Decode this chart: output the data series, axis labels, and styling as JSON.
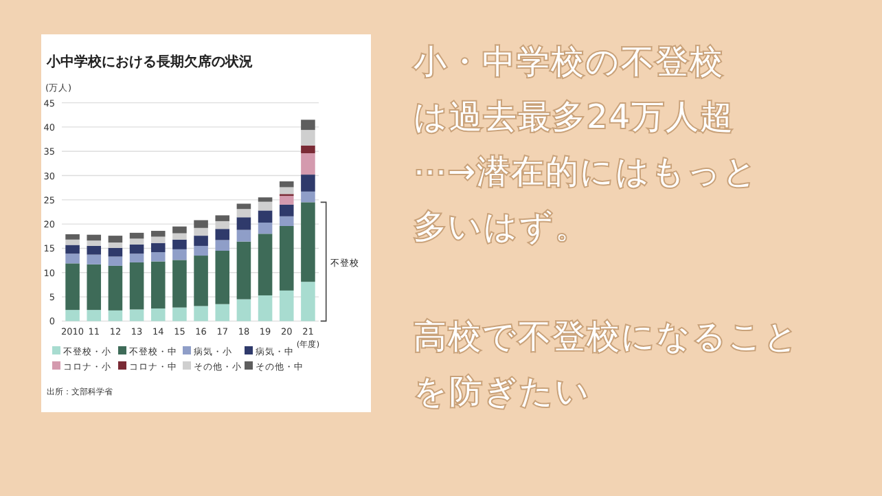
{
  "chart_data": {
    "type": "bar",
    "stacked": true,
    "title": "小中学校における長期欠席の状況",
    "ylabel": "(万人)",
    "xlabel": "(年度)",
    "categories": [
      "2010",
      "11",
      "12",
      "13",
      "14",
      "15",
      "16",
      "17",
      "18",
      "19",
      "20",
      "21"
    ],
    "series": [
      {
        "name": "不登校・小",
        "color": "#a8dcd0",
        "values": [
          2.3,
          2.3,
          2.2,
          2.4,
          2.6,
          2.8,
          3.1,
          3.5,
          4.5,
          5.3,
          6.3,
          8.1
        ]
      },
      {
        "name": "不登校・中",
        "color": "#3e6b58",
        "values": [
          9.6,
          9.4,
          9.2,
          9.7,
          9.7,
          9.8,
          10.4,
          11.0,
          11.9,
          12.7,
          13.3,
          16.4
        ]
      },
      {
        "name": "病気・小",
        "color": "#8f9ec8",
        "values": [
          2.0,
          2.0,
          1.9,
          1.8,
          1.9,
          2.2,
          2.0,
          2.2,
          2.4,
          2.3,
          2.0,
          2.2
        ]
      },
      {
        "name": "病気・中",
        "color": "#2f3a6b",
        "values": [
          1.8,
          1.8,
          1.8,
          1.9,
          1.9,
          2.0,
          2.1,
          2.3,
          2.6,
          2.5,
          2.4,
          3.5
        ]
      },
      {
        "name": "コロナ・小",
        "color": "#d49aae",
        "values": [
          0,
          0,
          0,
          0,
          0,
          0,
          0,
          0,
          0,
          0,
          1.8,
          4.4
        ]
      },
      {
        "name": "コロナ・中",
        "color": "#7a2a35",
        "values": [
          0,
          0,
          0,
          0,
          0,
          0,
          0,
          0,
          0,
          0,
          0.4,
          1.6
        ]
      },
      {
        "name": "その他・小",
        "color": "#cfcfcf",
        "values": [
          1.1,
          1.1,
          1.1,
          1.2,
          1.3,
          1.3,
          1.6,
          1.6,
          1.7,
          1.8,
          1.4,
          3.2
        ]
      },
      {
        "name": "その他・中",
        "color": "#5e5e5e",
        "values": [
          1.1,
          1.2,
          1.4,
          1.2,
          1.2,
          1.4,
          1.6,
          1.2,
          1.1,
          0.9,
          1.2,
          2.1
        ]
      }
    ],
    "ylim": [
      0,
      45
    ],
    "yticks": [
      0,
      5,
      10,
      15,
      20,
      25,
      30,
      35,
      40,
      45
    ],
    "grid": "y",
    "legend": "bottom",
    "annotations": [
      "不登校",
      "出所：文部科学省",
      "小・中学校の不登校",
      "は過去最多24万人超",
      "⋯→潜在的にはもっと",
      "多いはず。",
      "高校で不登校になること",
      "を防ぎたい"
    ]
  }
}
